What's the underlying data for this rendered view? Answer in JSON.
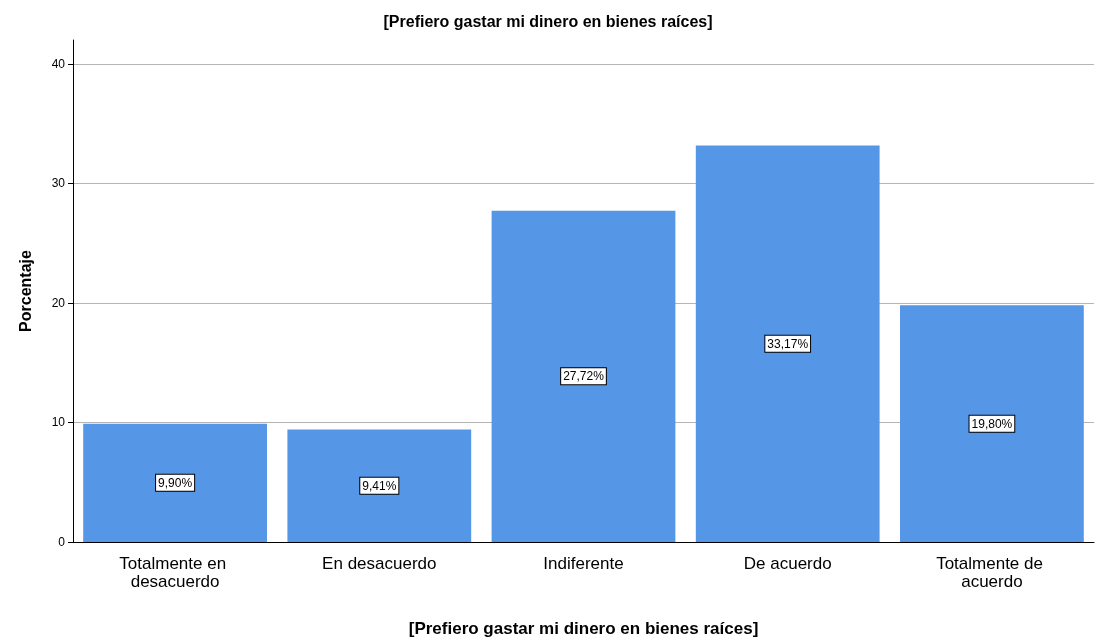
{
  "chart_data": {
    "type": "bar",
    "title": "[Prefiero gastar mi dinero en bienes raíces]",
    "xlabel": "[Prefiero gastar mi dinero en bienes raíces]",
    "ylabel": "Porcentaje",
    "categories": [
      "Totalmente en desacuerdo",
      "En desacuerdo",
      "Indiferente",
      "De acuerdo",
      "Totalmente de acuerdo"
    ],
    "values": [
      9.9,
      9.41,
      27.72,
      33.17,
      19.8
    ],
    "value_labels": [
      "9,90%",
      "9,41%",
      "27,72%",
      "33,17%",
      "19,80%"
    ],
    "color": "#5596e6",
    "ylim": [
      0,
      42
    ],
    "yticks": [
      0,
      10,
      20,
      30,
      40
    ],
    "grid": "y"
  }
}
